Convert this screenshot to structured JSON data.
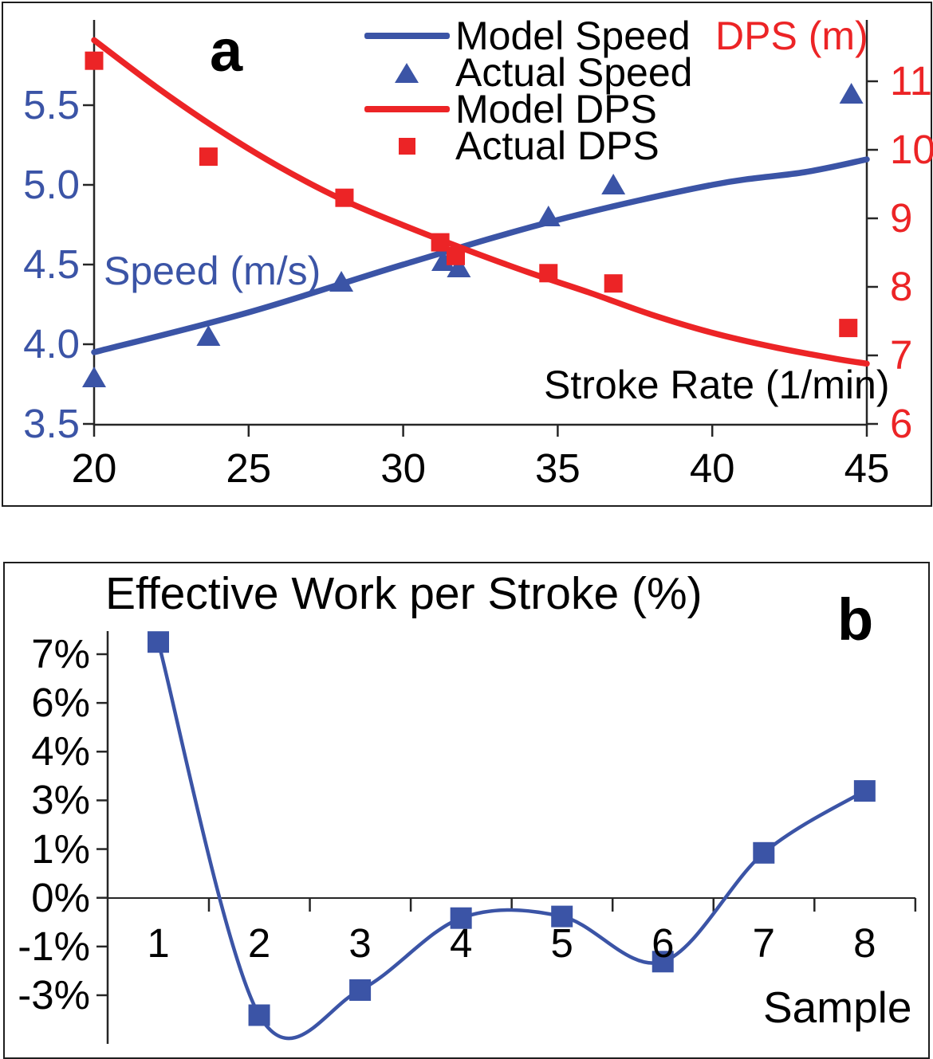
{
  "colors": {
    "blue": "#3B54A6",
    "red": "#EC2426",
    "text": "#000000",
    "axis": "#262626"
  },
  "panel_a": {
    "label": "a",
    "left_axis_title": "Speed (m/s)",
    "right_axis_title": "DPS (m)",
    "x_axis_title": "Stroke Rate (1/min)",
    "legend": [
      {
        "label": "Model Speed",
        "marker": "blue-line"
      },
      {
        "label": "Actual Speed",
        "marker": "blue-triangle"
      },
      {
        "label": "Model DPS",
        "marker": "red-line"
      },
      {
        "label": "Actual DPS",
        "marker": "red-square"
      }
    ]
  },
  "panel_b": {
    "label": "b",
    "title": "Effective Work per Stroke (%)",
    "x_axis_title": "Sample"
  },
  "chart_data": [
    {
      "id": "a",
      "type": "line",
      "subtype": "dual-axis line + scatter",
      "panel_label": "a",
      "xlabel": "Stroke Rate (1/min)",
      "x_ticks": [
        20,
        25,
        30,
        35,
        40,
        45
      ],
      "xlim": [
        20,
        45
      ],
      "left_axis": {
        "title": "Speed (m/s)",
        "ticks": [
          3.5,
          4.0,
          4.5,
          5.0,
          5.5
        ],
        "lim": [
          3.5,
          6.05
        ],
        "color": "#3B54A6"
      },
      "right_axis": {
        "title": "DPS (m)",
        "ticks": [
          6,
          7,
          8,
          9,
          10,
          11
        ],
        "lim": [
          6,
          11.9
        ],
        "color": "#EC2426"
      },
      "grid": false,
      "legend_position": "top-center",
      "series": [
        {
          "name": "Model Speed",
          "axis": "left",
          "type": "line",
          "marker": null,
          "color": "#3B54A6",
          "x": [
            20,
            25,
            30,
            35,
            40,
            43,
            45
          ],
          "y": [
            3.95,
            4.2,
            4.5,
            4.78,
            5.0,
            5.08,
            5.16
          ]
        },
        {
          "name": "Actual Speed",
          "axis": "left",
          "type": "scatter",
          "marker": "triangle",
          "color": "#3B54A6",
          "x": [
            20,
            23.7,
            28,
            31.3,
            31.8,
            34.7,
            36.8,
            44.5
          ],
          "y": [
            3.79,
            4.05,
            4.39,
            4.52,
            4.48,
            4.8,
            5.0,
            5.57
          ]
        },
        {
          "name": "Model DPS",
          "axis": "right",
          "type": "line",
          "marker": null,
          "color": "#EC2426",
          "x": [
            20,
            22,
            24,
            26,
            28,
            30,
            32,
            34,
            36,
            38,
            40,
            42,
            44,
            45
          ],
          "y": [
            11.6,
            10.92,
            10.3,
            9.75,
            9.28,
            8.9,
            8.55,
            8.22,
            7.92,
            7.6,
            7.33,
            7.12,
            6.95,
            6.88
          ]
        },
        {
          "name": "Actual DPS",
          "axis": "right",
          "type": "scatter",
          "marker": "square",
          "color": "#EC2426",
          "x": [
            20,
            23.7,
            28.1,
            31.2,
            31.7,
            34.7,
            36.8,
            44.4
          ],
          "y": [
            11.3,
            9.9,
            9.3,
            8.65,
            8.45,
            8.2,
            8.05,
            7.4
          ]
        }
      ]
    },
    {
      "id": "b",
      "type": "line",
      "title": "Effective Work per Stroke (%)",
      "panel_label": "b",
      "xlabel": "Sample",
      "categories": [
        1,
        2,
        3,
        4,
        5,
        6,
        7,
        8
      ],
      "values": [
        7.65,
        -3.5,
        -2.75,
        -0.6,
        -0.55,
        -1.9,
        1.35,
        3.2
      ],
      "y_tick_labels": [
        "7%",
        "6%",
        "4%",
        "3%",
        "1%",
        "0%",
        "-1%",
        "-3%"
      ],
      "y_tick_values": [
        7.25,
        5.8,
        4.35,
        2.9,
        1.45,
        0,
        -1.45,
        -2.9
      ],
      "ylim": [
        -4.3,
        7.9
      ],
      "grid": false,
      "zero_line": true,
      "smoothed": true,
      "marker": "square",
      "color": "#3B54A6"
    }
  ]
}
